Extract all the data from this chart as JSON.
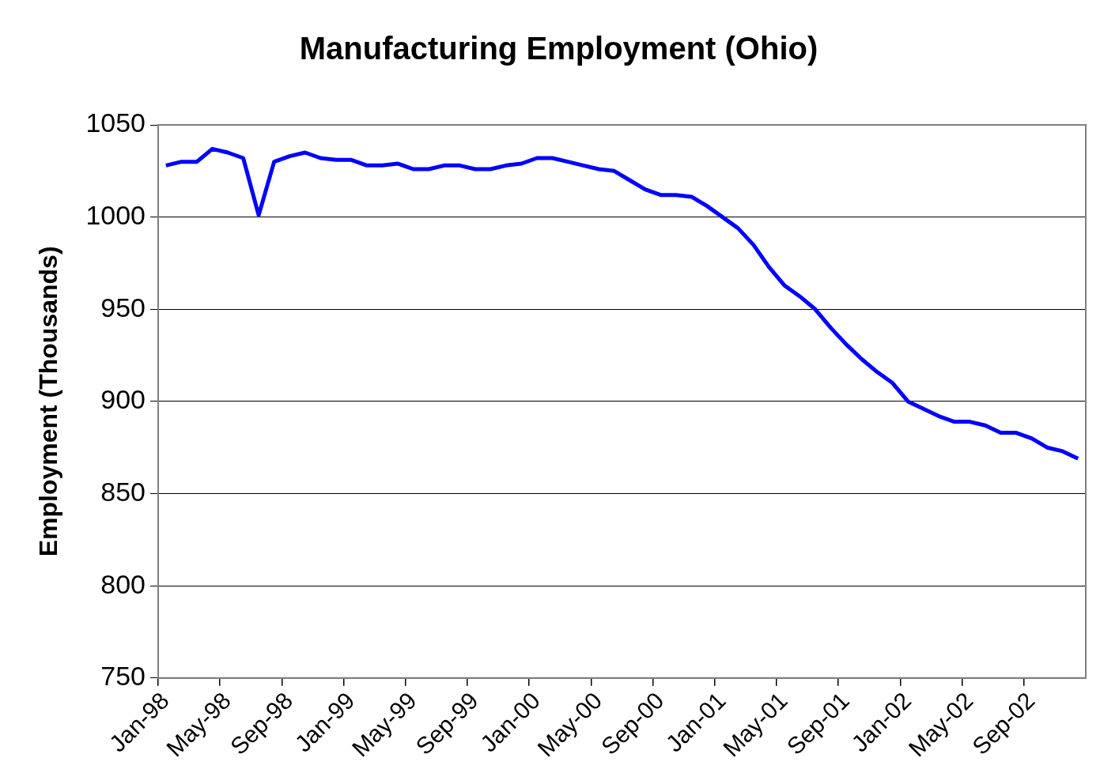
{
  "chart_data": {
    "type": "line",
    "title": "Manufacturing Employment (Ohio)",
    "ylabel": "Employment (Thousands)",
    "categories": [
      "Jan-98",
      null,
      null,
      null,
      "May-98",
      null,
      null,
      null,
      "Sep-98",
      null,
      null,
      null,
      "Jan-99",
      null,
      null,
      null,
      "May-99",
      null,
      null,
      null,
      "Sep-99",
      null,
      null,
      null,
      "Jan-00",
      null,
      null,
      null,
      "May-00",
      null,
      null,
      null,
      "Sep-00",
      null,
      null,
      null,
      "Jan-01",
      null,
      null,
      null,
      "May-01",
      null,
      null,
      null,
      "Sep-01",
      null,
      null,
      null,
      "Jan-02",
      null,
      null,
      null,
      "May-02",
      null,
      null,
      null,
      "Sep-02",
      null,
      null,
      null
    ],
    "series": [
      {
        "color": "#0000ff",
        "values": [
          1028,
          1030,
          1030,
          1037,
          1035,
          1032,
          1001,
          1030,
          1033,
          1035,
          1032,
          1031,
          1031,
          1028,
          1028,
          1029,
          1026,
          1026,
          1028,
          1028,
          1026,
          1026,
          1028,
          1029,
          1032,
          1032,
          1030,
          1028,
          1026,
          1025,
          1020,
          1015,
          1012,
          1012,
          1011,
          1006,
          1000,
          994,
          985,
          973,
          963,
          957,
          950,
          940,
          931,
          923,
          916,
          910,
          900,
          896,
          892,
          889,
          889,
          887,
          883,
          883,
          880,
          875,
          873,
          869
        ]
      }
    ],
    "ylim": [
      750,
      1050
    ],
    "yticks": [
      750,
      800,
      850,
      900,
      950,
      1000,
      1050
    ],
    "grid": "y",
    "legend": false,
    "marker": "none",
    "line_style": "solid"
  }
}
